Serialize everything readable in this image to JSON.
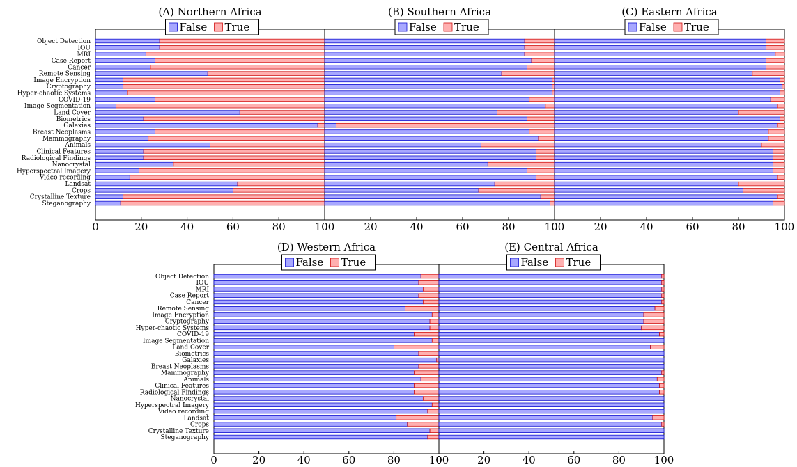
{
  "chart_data": {
    "type": "bar",
    "orientation": "horizontal",
    "stacked": true,
    "categories": [
      "Object Detection",
      "IOU",
      "MRI",
      "Case Report",
      "Cancer",
      "Remote Sensing",
      "Image Encryption",
      "Cryptography",
      "Hyper-chaotic Systems",
      "COVID-19",
      "Image Segmentation",
      "Land Cover",
      "Biometrics",
      "Galaxies",
      "Breast Neoplasms",
      "Mammography",
      "Animals",
      "Clinical Features",
      "Radiological Findings",
      "Nanocrystal",
      "Hyperspectral Imagery",
      "Video recording",
      "Landsat",
      "Crops",
      "Crystalline Texture",
      "Steganography"
    ],
    "xlim": [
      0,
      100
    ],
    "xticks": [
      0,
      20,
      40,
      60,
      80,
      100
    ],
    "grid": false,
    "legend": {
      "entries": [
        "False",
        "True"
      ],
      "position": "top-center"
    },
    "colors": {
      "False": "#a8a8ff",
      "True": "#ffb0b0",
      "False_edge": "#1010d0",
      "True_edge": "#d01010"
    },
    "panels": [
      {
        "title": "(A) Northern Africa",
        "series": [
          {
            "name": "False",
            "values": [
              28,
              28,
              22,
              26,
              24,
              49,
              12,
              12,
              14,
              26,
              9,
              63,
              21,
              97,
              26,
              23,
              50,
              21,
              21,
              34,
              19,
              15,
              62,
              60,
              12,
              11
            ]
          },
          {
            "name": "True",
            "values": [
              72,
              72,
              78,
              74,
              76,
              51,
              88,
              88,
              86,
              74,
              91,
              37,
              79,
              3,
              74,
              77,
              50,
              79,
              79,
              66,
              81,
              85,
              38,
              40,
              88,
              89
            ]
          }
        ]
      },
      {
        "title": "(B) Southern Africa",
        "series": [
          {
            "name": "False",
            "values": [
              87,
              87,
              87,
              90,
              88,
              77,
              99,
              99,
              99,
              89,
              96,
              75,
              88,
              5,
              89,
              93,
              68,
              92,
              92,
              71,
              88,
              92,
              74,
              67,
              94,
              98
            ]
          },
          {
            "name": "True",
            "values": [
              13,
              13,
              13,
              10,
              12,
              23,
              1,
              1,
              1,
              11,
              4,
              25,
              12,
              95,
              11,
              7,
              32,
              8,
              8,
              29,
              12,
              8,
              26,
              33,
              6,
              2
            ]
          }
        ]
      },
      {
        "title": "(C) Eastern Africa",
        "series": [
          {
            "name": "False",
            "values": [
              92,
              92,
              96,
              92,
              92,
              86,
              98,
              99,
              98,
              94,
              97,
              80,
              98,
              97,
              93,
              93,
              90,
              95,
              95,
              95,
              95,
              97,
              80,
              82,
              97,
              95
            ]
          },
          {
            "name": "True",
            "values": [
              8,
              8,
              4,
              8,
              8,
              14,
              2,
              1,
              2,
              6,
              3,
              20,
              2,
              3,
              7,
              7,
              10,
              5,
              5,
              5,
              5,
              3,
              20,
              18,
              3,
              5
            ]
          }
        ]
      },
      {
        "title": "(D) Western Africa",
        "series": [
          {
            "name": "False",
            "values": [
              92,
              91,
              93,
              91,
              93,
              85,
              97,
              96,
              96,
              89,
              97,
              80,
              91,
              99,
              91,
              89,
              92,
              89,
              89,
              93,
              97,
              95,
              81,
              86,
              96,
              95
            ]
          },
          {
            "name": "True",
            "values": [
              8,
              9,
              7,
              9,
              7,
              15,
              3,
              4,
              4,
              11,
              3,
              20,
              9,
              1,
              9,
              11,
              8,
              11,
              11,
              7,
              3,
              5,
              19,
              14,
              4,
              5
            ]
          }
        ]
      },
      {
        "title": "(E) Central Africa",
        "series": [
          {
            "name": "False",
            "values": [
              99,
              99,
              99,
              99,
              99,
              96,
              91,
              91,
              90,
              98,
              100,
              94,
              100,
              100,
              100,
              99,
              97,
              98,
              98,
              100,
              100,
              100,
              95,
              99,
              100,
              100
            ]
          },
          {
            "name": "True",
            "values": [
              1,
              1,
              1,
              1,
              1,
              4,
              9,
              9,
              10,
              2,
              0,
              6,
              0,
              0,
              0,
              1,
              3,
              2,
              2,
              0,
              0,
              0,
              5,
              1,
              0,
              0
            ]
          }
        ]
      }
    ]
  }
}
